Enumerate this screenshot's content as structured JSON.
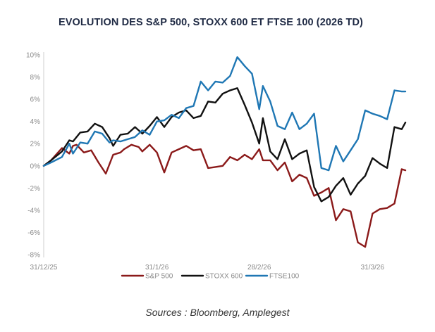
{
  "title": "EVOLUTION DES S&P 500, STOXX 600 ET FTSE 100 (2026 TD)",
  "source": "Sources : Bloomberg, Amplegest",
  "chart_data": {
    "type": "line",
    "title": "EVOLUTION DES S&P 500, STOXX 600 ET FTSE 100 (2026 TD)",
    "x_start": "31/12/25",
    "x_end": "09/4/26",
    "xlabel": "",
    "ylabel": "",
    "ylim": [
      -8,
      10
    ],
    "y_ticks": [
      "10%",
      "8%",
      "6%",
      "4%",
      "2%",
      "0%",
      "-2%",
      "-4%",
      "-6%",
      "-8%"
    ],
    "x_ticks": [
      "31/12/25",
      "31/1/26",
      "28/2/26",
      "31/3/26"
    ],
    "grid": false,
    "legend_position": "bottom",
    "series": [
      {
        "name": "S&P 500",
        "color": "#8b1a1a",
        "x": [
          "31/12/25",
          "2/1/26",
          "5/1/26",
          "7/1/26",
          "8/1/26",
          "9/1/26",
          "11/1/26",
          "13/1/26",
          "15/1/26",
          "17/1/26",
          "19/1/26",
          "21/1/26",
          "22/1/26",
          "24/1/26",
          "26/1/26",
          "27/1/26",
          "29/1/26",
          "31/1/26",
          "2/2/26",
          "4/2/26",
          "6/2/26",
          "8/2/26",
          "10/2/26",
          "12/2/26",
          "14/2/26",
          "16/2/26",
          "18/2/26",
          "20/2/26",
          "22/2/26",
          "24/2/26",
          "26/2/26",
          "28/2/26",
          "1/3/26",
          "3/3/26",
          "5/3/26",
          "7/3/26",
          "9/3/26",
          "11/3/26",
          "13/3/26",
          "15/3/26",
          "17/3/26",
          "19/3/26",
          "21/3/26",
          "23/3/26",
          "25/3/26",
          "27/3/26",
          "29/3/26",
          "31/3/26",
          "2/4/26",
          "4/4/26",
          "6/4/26",
          "8/4/26",
          "9/4/26"
        ],
        "values": [
          0.0,
          0.5,
          1.6,
          1.1,
          1.8,
          1.9,
          1.2,
          1.4,
          0.3,
          -0.7,
          1.0,
          1.2,
          1.5,
          1.9,
          1.7,
          1.3,
          1.9,
          1.2,
          -0.6,
          1.2,
          1.5,
          1.8,
          1.4,
          1.5,
          -0.2,
          -0.1,
          0.0,
          0.8,
          0.5,
          1.0,
          0.6,
          1.5,
          0.5,
          0.5,
          -0.4,
          0.3,
          -1.4,
          -0.8,
          -1.1,
          -2.7,
          -2.4,
          -2.0,
          -4.9,
          -3.9,
          -4.1,
          -6.9,
          -7.3,
          -4.3,
          -3.9,
          -3.8,
          -3.4,
          -0.3,
          -0.4
        ]
      },
      {
        "name": "STOXX 600",
        "color": "#111111",
        "x": [
          "31/12/25",
          "2/1/26",
          "5/1/26",
          "7/1/26",
          "8/1/26",
          "10/1/26",
          "12/1/26",
          "14/1/26",
          "16/1/26",
          "18/1/26",
          "19/1/26",
          "21/1/26",
          "23/1/26",
          "25/1/26",
          "27/1/26",
          "29/1/26",
          "31/1/26",
          "2/2/26",
          "4/2/26",
          "6/2/26",
          "8/2/26",
          "10/2/26",
          "12/2/26",
          "14/2/26",
          "16/2/26",
          "18/2/26",
          "20/2/26",
          "22/2/26",
          "24/2/26",
          "26/2/26",
          "28/2/26",
          "1/3/26",
          "3/3/26",
          "5/3/26",
          "7/3/26",
          "9/3/26",
          "11/3/26",
          "13/3/26",
          "15/3/26",
          "17/3/26",
          "19/3/26",
          "21/3/26",
          "23/3/26",
          "25/3/26",
          "27/3/26",
          "29/3/26",
          "31/3/26",
          "2/4/26",
          "4/4/26",
          "6/4/26",
          "8/4/26",
          "9/4/26"
        ],
        "values": [
          0.0,
          0.5,
          1.3,
          2.3,
          2.2,
          3.0,
          3.1,
          3.8,
          3.5,
          2.5,
          1.8,
          2.8,
          2.9,
          3.5,
          2.9,
          3.6,
          4.4,
          3.5,
          4.4,
          4.8,
          5.0,
          4.3,
          4.5,
          5.8,
          5.7,
          6.5,
          6.8,
          7.0,
          5.5,
          3.9,
          2.0,
          4.3,
          1.3,
          0.6,
          2.4,
          0.6,
          1.1,
          1.4,
          -1.9,
          -3.2,
          -2.8,
          -1.8,
          -1.1,
          -2.6,
          -1.6,
          -0.9,
          0.7,
          0.2,
          -0.2,
          3.5,
          3.3,
          3.9
        ]
      },
      {
        "name": "FTSE100",
        "color": "#1f77b4",
        "x": [
          "31/12/25",
          "2/1/26",
          "5/1/26",
          "7/1/26",
          "8/1/26",
          "10/1/26",
          "12/1/26",
          "14/1/26",
          "16/1/26",
          "18/1/26",
          "19/1/26",
          "21/1/26",
          "23/1/26",
          "25/1/26",
          "27/1/26",
          "29/1/26",
          "31/1/26",
          "2/2/26",
          "4/2/26",
          "6/2/26",
          "8/2/26",
          "10/2/26",
          "12/2/26",
          "14/2/26",
          "16/2/26",
          "18/2/26",
          "20/2/26",
          "22/2/26",
          "24/2/26",
          "26/2/26",
          "28/2/26",
          "1/3/26",
          "3/3/26",
          "5/3/26",
          "7/3/26",
          "9/3/26",
          "11/3/26",
          "13/3/26",
          "15/3/26",
          "17/3/26",
          "19/3/26",
          "21/3/26",
          "23/3/26",
          "25/3/26",
          "27/3/26",
          "29/3/26",
          "31/3/26",
          "2/4/26",
          "4/4/26",
          "6/4/26",
          "8/4/26",
          "9/4/26"
        ],
        "values": [
          0.0,
          0.3,
          0.8,
          2.0,
          1.1,
          2.1,
          2.0,
          3.1,
          2.9,
          2.1,
          2.3,
          2.2,
          2.4,
          2.6,
          3.2,
          2.8,
          4.0,
          4.1,
          4.6,
          4.3,
          5.2,
          5.4,
          7.6,
          6.8,
          7.6,
          7.5,
          8.1,
          9.8,
          9.0,
          8.3,
          5.1,
          7.2,
          5.8,
          3.6,
          3.3,
          4.8,
          3.3,
          3.8,
          4.7,
          -0.2,
          -0.4,
          1.8,
          0.4,
          1.4,
          2.4,
          5.0,
          4.7,
          4.5,
          4.2,
          6.8,
          6.7,
          6.7
        ]
      }
    ]
  }
}
